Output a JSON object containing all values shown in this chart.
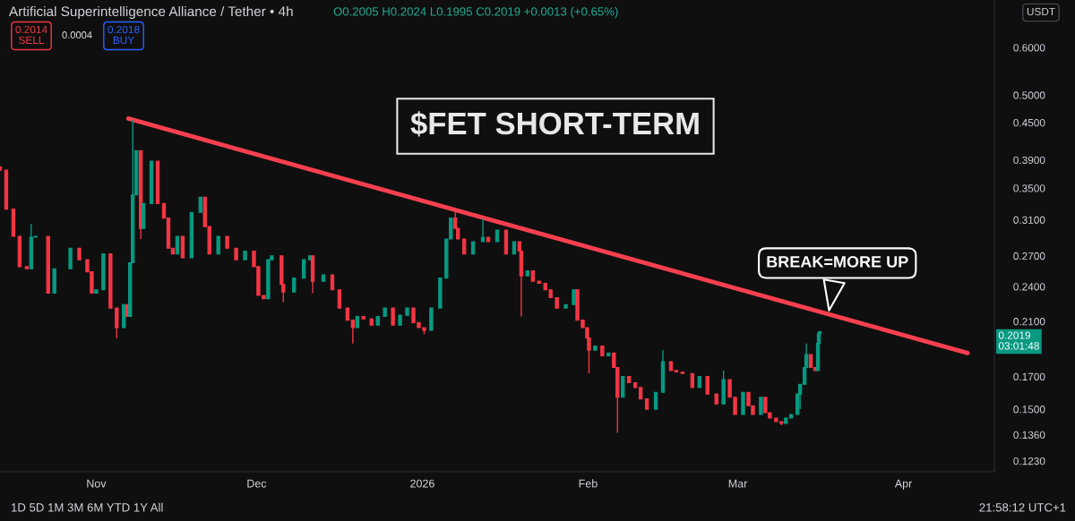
{
  "chart_data": {
    "type": "candlestick",
    "title": "$FET SHORT-TERM",
    "subtitle": "Artificial Superintelligence Alliance / Tether • 4h",
    "x": [
      "2025-10-14T00:00",
      "2025-10-15T04:00",
      "2025-10-16T12:00",
      "2025-10-17T16:00",
      "2025-10-19T00:00",
      "2025-10-19T20:00",
      "2025-10-20T16:00",
      "2025-10-23T00:00",
      "2025-10-24T04:00",
      "2025-10-27T04:00",
      "2025-10-28T20:00",
      "2025-10-30T08:00",
      "2025-10-31T04:00",
      "2025-11-01T00:00",
      "2025-11-02T08:00",
      "2025-11-03T16:00",
      "2025-11-04T20:00",
      "2025-11-06T04:00",
      "2025-11-06T20:00",
      "2025-11-07T08:00",
      "2025-11-07T20:00",
      "2025-11-08T12:00",
      "2025-11-09T08:00",
      "2025-11-09T20:00",
      "2025-11-11T08:00",
      "2025-11-12T12:00",
      "2025-11-13T16:00",
      "2025-11-14T12:00",
      "2025-11-15T08:00",
      "2025-11-16T04:00",
      "2025-11-17T04:00",
      "2025-11-18T20:00",
      "2025-11-20T12:00",
      "2025-11-21T08:00",
      "2025-11-22T04:00",
      "2025-11-23T20:00",
      "2025-11-25T12:00",
      "2025-11-27T04:00",
      "2025-11-28T20:00",
      "2025-11-30T12:00",
      "2025-12-01T08:00",
      "2025-12-02T08:00",
      "2025-12-03T04:00",
      "2025-12-03T20:00",
      "2025-12-05T16:00",
      "2025-12-06T00:00",
      "2025-12-08T00:00",
      "2025-12-09T20:00",
      "2025-12-11T00:00",
      "2025-12-11T12:00",
      "2025-12-13T12:00",
      "2025-12-15T04:00",
      "2025-12-16T12:00",
      "2025-12-18T00:00",
      "2025-12-19T00:00",
      "2025-12-19T20:00",
      "2025-12-21T00:00",
      "2025-12-22T12:00",
      "2025-12-23T16:00",
      "2025-12-25T00:00",
      "2025-12-26T12:00",
      "2025-12-27T20:00",
      "2025-12-29T04:00",
      "2025-12-30T08:00",
      "2025-12-31T08:00",
      "2026-01-01T08:00",
      "2026-01-02T16:00",
      "2026-01-04T08:00",
      "2026-01-05T12:00",
      "2026-01-06T08:00",
      "2026-01-07T04:00",
      "2026-01-07T16:00",
      "2026-01-08T20:00",
      "2026-01-10T12:00",
      "2026-01-12T08:00",
      "2026-01-13T08:00",
      "2026-01-15T00:00",
      "2026-01-16T16:00",
      "2026-01-18T04:00",
      "2026-01-19T04:00",
      "2026-01-19T12:00",
      "2026-01-20T16:00",
      "2026-01-21T16:00",
      "2026-01-22T20:00",
      "2026-01-24T00:00",
      "2026-01-25T00:00",
      "2026-01-26T04:00",
      "2026-01-27T20:00",
      "2026-01-29T08:00",
      "2026-01-30T00:00",
      "2026-01-31T00:00",
      "2026-01-31T20:00",
      "2026-02-01T04:00",
      "2026-02-02T08:00",
      "2026-02-03T16:00",
      "2026-02-04T20:00",
      "2026-02-05T20:00",
      "2026-02-06T12:00",
      "2026-02-07T12:00",
      "2026-02-08T16:00",
      "2026-02-09T20:00",
      "2026-02-10T20:00",
      "2026-02-12T00:00",
      "2026-02-13T16:00",
      "2026-02-15T00:00",
      "2026-02-16T12:00",
      "2026-02-17T12:00",
      "2026-02-18T16:00",
      "2026-02-20T12:00",
      "2026-02-21T20:00",
      "2026-02-23T08:00",
      "2026-02-25T00:00",
      "2026-02-26T08:00",
      "2026-02-27T12:00",
      "2026-02-28T12:00",
      "2026-03-02T00:00",
      "2026-03-03T00:00",
      "2026-03-03T20:00",
      "2026-03-05T08:00",
      "2026-03-06T04:00",
      "2026-03-07T00:00",
      "2026-03-08T04:00",
      "2026-03-09T04:00",
      "2026-03-10T00:00",
      "2026-03-11T00:00",
      "2026-03-12T04:00",
      "2026-03-12T16:00",
      "2026-03-13T12:00",
      "2026-03-13T20:00",
      "2026-03-14T16:00",
      "2026-03-15T12:00",
      "2026-03-16T00:00",
      "2026-03-16T04:00",
      "2026-03-16T08:00"
    ],
    "ohlc": [
      [
        0.38,
        0.38,
        0.375,
        0.375
      ],
      [
        0.375,
        0.375,
        0.323,
        0.323
      ],
      [
        0.323,
        0.323,
        0.291,
        0.291
      ],
      [
        0.291,
        0.291,
        0.259,
        0.259
      ],
      [
        0.259,
        0.259,
        0.257,
        0.257
      ],
      [
        0.257,
        0.305,
        0.257,
        0.29
      ],
      [
        0.29,
        0.291,
        0.29,
        0.291
      ],
      [
        0.291,
        0.291,
        0.234,
        0.234
      ],
      [
        0.234,
        0.257,
        0.234,
        0.257
      ],
      [
        0.257,
        0.278,
        0.257,
        0.278
      ],
      [
        0.278,
        0.278,
        0.266,
        0.266
      ],
      [
        0.266,
        0.266,
        0.254,
        0.254
      ],
      [
        0.254,
        0.254,
        0.234,
        0.234
      ],
      [
        0.234,
        0.237,
        0.234,
        0.237
      ],
      [
        0.237,
        0.272,
        0.237,
        0.272
      ],
      [
        0.272,
        0.272,
        0.221,
        0.221
      ],
      [
        0.221,
        0.221,
        0.197,
        0.205
      ],
      [
        0.205,
        0.224,
        0.205,
        0.224
      ],
      [
        0.224,
        0.224,
        0.214,
        0.214
      ],
      [
        0.214,
        0.263,
        0.214,
        0.263
      ],
      [
        0.263,
        0.455,
        0.263,
        0.341
      ],
      [
        0.341,
        0.404,
        0.341,
        0.404
      ],
      [
        0.404,
        0.404,
        0.288,
        0.3
      ],
      [
        0.3,
        0.33,
        0.3,
        0.33
      ],
      [
        0.33,
        0.388,
        0.33,
        0.388
      ],
      [
        0.388,
        0.388,
        0.33,
        0.33
      ],
      [
        0.33,
        0.33,
        0.312,
        0.312
      ],
      [
        0.312,
        0.312,
        0.278,
        0.278
      ],
      [
        0.278,
        0.278,
        0.272,
        0.272
      ],
      [
        0.272,
        0.291,
        0.272,
        0.291
      ],
      [
        0.291,
        0.291,
        0.268,
        0.268
      ],
      [
        0.268,
        0.319,
        0.268,
        0.319
      ],
      [
        0.319,
        0.338,
        0.319,
        0.338
      ],
      [
        0.338,
        0.338,
        0.302,
        0.302
      ],
      [
        0.302,
        0.302,
        0.272,
        0.272
      ],
      [
        0.272,
        0.291,
        0.272,
        0.291
      ],
      [
        0.291,
        0.291,
        0.278,
        0.278
      ],
      [
        0.278,
        0.278,
        0.266,
        0.266
      ],
      [
        0.266,
        0.275,
        0.266,
        0.275
      ],
      [
        0.275,
        0.275,
        0.259,
        0.259
      ],
      [
        0.259,
        0.259,
        0.232,
        0.232
      ],
      [
        0.232,
        0.232,
        0.229,
        0.229
      ],
      [
        0.229,
        0.266,
        0.229,
        0.266
      ],
      [
        0.266,
        0.27,
        0.266,
        0.27
      ],
      [
        0.27,
        0.27,
        0.242,
        0.242
      ],
      [
        0.242,
        0.242,
        0.226,
        0.235
      ],
      [
        0.235,
        0.248,
        0.235,
        0.248
      ],
      [
        0.248,
        0.266,
        0.248,
        0.266
      ],
      [
        0.266,
        0.27,
        0.266,
        0.27
      ],
      [
        0.27,
        0.27,
        0.234,
        0.245
      ],
      [
        0.245,
        0.251,
        0.245,
        0.251
      ],
      [
        0.251,
        0.251,
        0.237,
        0.237
      ],
      [
        0.237,
        0.237,
        0.221,
        0.221
      ],
      [
        0.221,
        0.221,
        0.211,
        0.211
      ],
      [
        0.211,
        0.211,
        0.193,
        0.205
      ],
      [
        0.205,
        0.214,
        0.205,
        0.214
      ],
      [
        0.214,
        0.214,
        0.212,
        0.212
      ],
      [
        0.212,
        0.212,
        0.207,
        0.207
      ],
      [
        0.207,
        0.214,
        0.207,
        0.214
      ],
      [
        0.214,
        0.221,
        0.214,
        0.221
      ],
      [
        0.221,
        0.221,
        0.207,
        0.207
      ],
      [
        0.207,
        0.215,
        0.207,
        0.215
      ],
      [
        0.215,
        0.221,
        0.215,
        0.221
      ],
      [
        0.221,
        0.221,
        0.209,
        0.209
      ],
      [
        0.209,
        0.209,
        0.205,
        0.205
      ],
      [
        0.205,
        0.205,
        0.2,
        0.203
      ],
      [
        0.203,
        0.221,
        0.203,
        0.221
      ],
      [
        0.221,
        0.248,
        0.221,
        0.248
      ],
      [
        0.248,
        0.288,
        0.248,
        0.288
      ],
      [
        0.288,
        0.312,
        0.288,
        0.312
      ],
      [
        0.312,
        0.319,
        0.3,
        0.3
      ],
      [
        0.3,
        0.3,
        0.288,
        0.288
      ],
      [
        0.288,
        0.288,
        0.272,
        0.272
      ],
      [
        0.272,
        0.285,
        0.272,
        0.285
      ],
      [
        0.285,
        0.312,
        0.285,
        0.29
      ],
      [
        0.29,
        0.29,
        0.285,
        0.285
      ],
      [
        0.285,
        0.298,
        0.285,
        0.298
      ],
      [
        0.298,
        0.298,
        0.272,
        0.272
      ],
      [
        0.272,
        0.285,
        0.272,
        0.285
      ],
      [
        0.285,
        0.285,
        0.275,
        0.275
      ],
      [
        0.275,
        0.275,
        0.214,
        0.25
      ],
      [
        0.25,
        0.255,
        0.25,
        0.255
      ],
      [
        0.255,
        0.255,
        0.245,
        0.245
      ],
      [
        0.245,
        0.245,
        0.243,
        0.243
      ],
      [
        0.243,
        0.243,
        0.237,
        0.237
      ],
      [
        0.237,
        0.237,
        0.23,
        0.23
      ],
      [
        0.23,
        0.23,
        0.221,
        0.221
      ],
      [
        0.221,
        0.224,
        0.221,
        0.224
      ],
      [
        0.224,
        0.237,
        0.224,
        0.237
      ],
      [
        0.237,
        0.237,
        0.211,
        0.211
      ],
      [
        0.211,
        0.211,
        0.205,
        0.205
      ],
      [
        0.205,
        0.205,
        0.197,
        0.197
      ],
      [
        0.197,
        0.197,
        0.172,
        0.188
      ],
      [
        0.188,
        0.191,
        0.188,
        0.191
      ],
      [
        0.191,
        0.191,
        0.184,
        0.184
      ],
      [
        0.184,
        0.186,
        0.184,
        0.186
      ],
      [
        0.186,
        0.186,
        0.176,
        0.176
      ],
      [
        0.176,
        0.176,
        0.137,
        0.157
      ],
      [
        0.157,
        0.17,
        0.157,
        0.17
      ],
      [
        0.17,
        0.17,
        0.166,
        0.166
      ],
      [
        0.166,
        0.166,
        0.163,
        0.163
      ],
      [
        0.163,
        0.163,
        0.156,
        0.156
      ],
      [
        0.156,
        0.156,
        0.15,
        0.15
      ],
      [
        0.15,
        0.16,
        0.15,
        0.16
      ],
      [
        0.16,
        0.188,
        0.16,
        0.18
      ],
      [
        0.18,
        0.18,
        0.174,
        0.174
      ],
      [
        0.174,
        0.174,
        0.173,
        0.173
      ],
      [
        0.173,
        0.173,
        0.172,
        0.172
      ],
      [
        0.172,
        0.172,
        0.163,
        0.163
      ],
      [
        0.163,
        0.17,
        0.163,
        0.17
      ],
      [
        0.17,
        0.17,
        0.159,
        0.159
      ],
      [
        0.159,
        0.159,
        0.153,
        0.153
      ],
      [
        0.153,
        0.174,
        0.153,
        0.168
      ],
      [
        0.168,
        0.168,
        0.157,
        0.157
      ],
      [
        0.157,
        0.157,
        0.147,
        0.147
      ],
      [
        0.147,
        0.16,
        0.147,
        0.16
      ],
      [
        0.16,
        0.16,
        0.152,
        0.152
      ],
      [
        0.152,
        0.152,
        0.147,
        0.147
      ],
      [
        0.147,
        0.157,
        0.147,
        0.157
      ],
      [
        0.157,
        0.157,
        0.148,
        0.148
      ],
      [
        0.148,
        0.148,
        0.145,
        0.145
      ],
      [
        0.145,
        0.145,
        0.143,
        0.143
      ],
      [
        0.143,
        0.143,
        0.141,
        0.142
      ],
      [
        0.142,
        0.145,
        0.142,
        0.145
      ],
      [
        0.145,
        0.147,
        0.145,
        0.147
      ],
      [
        0.147,
        0.159,
        0.147,
        0.159
      ],
      [
        0.159,
        0.165,
        0.15,
        0.165
      ],
      [
        0.165,
        0.176,
        0.165,
        0.176
      ],
      [
        0.176,
        0.193,
        0.176,
        0.185
      ],
      [
        0.185,
        0.185,
        0.176,
        0.176
      ],
      [
        0.176,
        0.176,
        0.174,
        0.174
      ],
      [
        0.174,
        0.193,
        0.174,
        0.193
      ],
      [
        0.193,
        0.2005,
        0.193,
        0.2005
      ],
      [
        0.2005,
        0.2024,
        0.1995,
        0.2019
      ]
    ],
    "colors": [
      "#f23645",
      "#f23645",
      "#f23645",
      "#f23645",
      "#f23645",
      "#089981",
      "#089981",
      "#f23645",
      "#089981",
      "#089981",
      "#f23645",
      "#f23645",
      "#f23645",
      "#089981",
      "#089981",
      "#f23645",
      "#f23645",
      "#089981",
      "#f23645",
      "#089981",
      "#089981",
      "#089981",
      "#f23645",
      "#089981",
      "#089981",
      "#f23645",
      "#f23645",
      "#f23645",
      "#f23645",
      "#089981",
      "#f23645",
      "#089981",
      "#089981",
      "#f23645",
      "#f23645",
      "#089981",
      "#f23645",
      "#f23645",
      "#089981",
      "#f23645",
      "#f23645",
      "#f23645",
      "#089981",
      "#089981",
      "#f23645",
      "#f23645",
      "#089981",
      "#089981",
      "#089981",
      "#f23645",
      "#089981",
      "#f23645",
      "#f23645",
      "#f23645",
      "#f23645",
      "#089981",
      "#f23645",
      "#f23645",
      "#089981",
      "#089981",
      "#f23645",
      "#089981",
      "#089981",
      "#f23645",
      "#f23645",
      "#f23645",
      "#089981",
      "#089981",
      "#089981",
      "#089981",
      "#f23645",
      "#f23645",
      "#f23645",
      "#089981",
      "#089981",
      "#f23645",
      "#089981",
      "#f23645",
      "#089981",
      "#f23645",
      "#f23645",
      "#089981",
      "#f23645",
      "#f23645",
      "#f23645",
      "#f23645",
      "#f23645",
      "#089981",
      "#089981",
      "#f23645",
      "#f23645",
      "#f23645",
      "#f23645",
      "#089981",
      "#f23645",
      "#089981",
      "#f23645",
      "#f23645",
      "#089981",
      "#f23645",
      "#f23645",
      "#f23645",
      "#f23645",
      "#089981",
      "#089981",
      "#f23645",
      "#f23645",
      "#f23645",
      "#f23645",
      "#089981",
      "#f23645",
      "#f23645",
      "#089981",
      "#f23645",
      "#f23645",
      "#089981",
      "#f23645",
      "#f23645",
      "#089981",
      "#f23645",
      "#f23645",
      "#f23645",
      "#f23645",
      "#089981",
      "#089981",
      "#089981",
      "#089981",
      "#089981",
      "#089981",
      "#f23645",
      "#f23645",
      "#089981",
      "#089981",
      "#089981"
    ],
    "series": [
      {
        "type": "line",
        "color": "#f7404f",
        "x": [
          "2025-11-07",
          "2026-04-13"
        ],
        "values": [
          0.457,
          0.186
        ]
      }
    ],
    "log": true,
    "xlim": [
      "2025-10-14",
      "2026-04-18"
    ],
    "xticks": [
      {
        "value": "2025-11-01",
        "label": "Nov"
      },
      {
        "value": "2025-12-01",
        "label": "Dec"
      },
      {
        "value": "2026-01-01",
        "label": "2026"
      },
      {
        "value": "2026-02-01",
        "label": "Feb"
      },
      {
        "value": "2026-03-01",
        "label": "Mar"
      },
      {
        "value": "2026-04-01",
        "label": "Apr"
      }
    ],
    "ylim": [
      0.118,
      0.72
    ],
    "yticks": [
      {
        "value": 0.123,
        "label": "0.1230"
      },
      {
        "value": 0.136,
        "label": "0.1360"
      },
      {
        "value": 0.15,
        "label": "0.1500"
      },
      {
        "value": 0.17,
        "label": "0.1700"
      },
      {
        "value": 0.21,
        "label": "0.2100"
      },
      {
        "value": 0.24,
        "label": "0.2400"
      },
      {
        "value": 0.27,
        "label": "0.2700"
      },
      {
        "value": 0.31,
        "label": "0.3100"
      },
      {
        "value": 0.35,
        "label": "0.3500"
      },
      {
        "value": 0.39,
        "label": "0.3900"
      },
      {
        "value": 0.45,
        "label": "0.4500"
      },
      {
        "value": 0.5,
        "label": "0.5000"
      },
      {
        "value": 0.6,
        "label": "0.6000"
      }
    ],
    "annotations": [
      "O0.2005 H0.2024 L0.1995 C0.2019 +0.0013 (+0.65%)",
      "0.2014\nSELL",
      "0.0004",
      "0.2018\nBUY",
      "USDT",
      "0.2019\n03:01:48",
      "1D 5D 1M 3M 6M YTD 1Y All",
      "21:58:12 UTC+1",
      {
        "text": "BREAK=MORE UP",
        "x": "2026-03-18",
        "y": 0.217
      }
    ]
  }
}
